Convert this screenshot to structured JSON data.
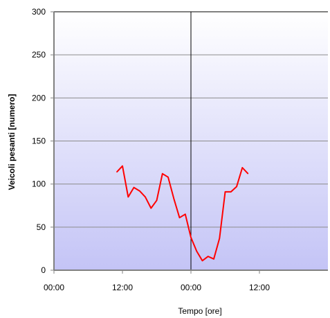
{
  "chart_data": {
    "type": "line",
    "title": "",
    "xlabel": "Tempo [ore]",
    "ylabel": "Veicoli pesanti [numero]",
    "ylim": [
      0,
      300
    ],
    "xlim": [
      0,
      48
    ],
    "y_ticks": [
      0,
      50,
      100,
      150,
      200,
      250,
      300
    ],
    "x_ticks": [
      {
        "value": 0,
        "label": "00:00"
      },
      {
        "value": 12,
        "label": "12:00"
      },
      {
        "value": 24,
        "label": "00:00"
      },
      {
        "value": 36,
        "label": "12:00"
      }
    ],
    "grid": true,
    "reference_line_x": 24,
    "background_gradient": [
      "#ffffff",
      "#c4c4f6"
    ],
    "series": [
      {
        "color": "#ff0000",
        "x": [
          11,
          12,
          13,
          14,
          15,
          16,
          17,
          18,
          19,
          20,
          21,
          22,
          23,
          24,
          25,
          26,
          27,
          28,
          29,
          30,
          31,
          32,
          33,
          34,
          35
        ],
        "y": [
          114,
          121,
          85,
          96,
          92,
          85,
          72,
          81,
          112,
          108,
          83,
          61,
          65,
          38,
          22,
          11,
          16,
          13,
          37,
          91,
          91,
          97,
          119,
          112,
          null
        ]
      }
    ]
  }
}
